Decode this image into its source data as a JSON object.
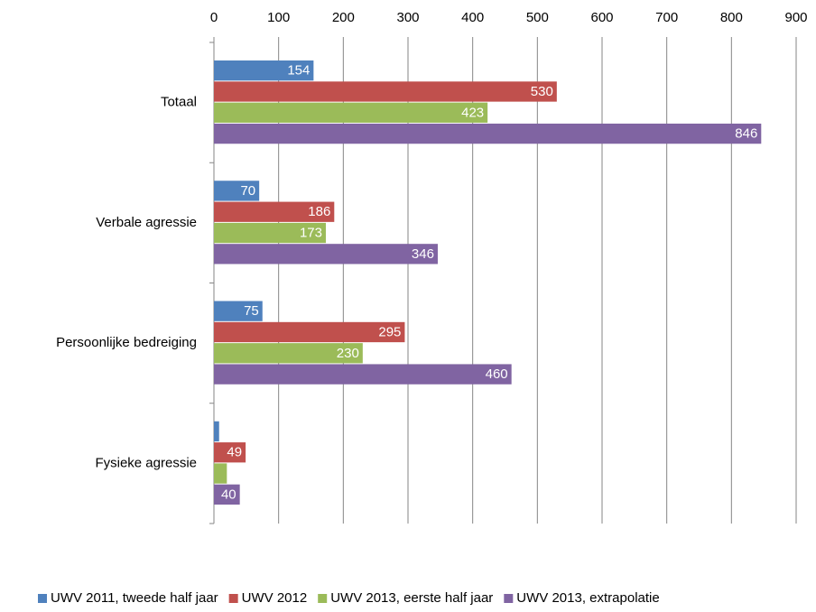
{
  "chart_data": {
    "type": "barh",
    "categories": [
      "Totaal",
      "Verbale agressie",
      "Persoonlijke bedreiging",
      "Fysieke agressie"
    ],
    "series": [
      {
        "name": "UWV 2011, tweede half jaar",
        "color": "#4f81bd",
        "values": [
          154,
          70,
          75,
          8
        ],
        "value_labels": [
          154,
          70,
          75,
          null
        ]
      },
      {
        "name": "UWV 2012",
        "color": "#c0504d",
        "values": [
          530,
          186,
          295,
          49
        ],
        "value_labels": [
          530,
          186,
          295,
          49
        ]
      },
      {
        "name": "UWV 2013, eerste half jaar",
        "color": "#9bbb59",
        "values": [
          423,
          173,
          230,
          20
        ],
        "value_labels": [
          423,
          173,
          230,
          null
        ]
      },
      {
        "name": "UWV 2013, extrapolatie",
        "color": "#8064a2",
        "values": [
          846,
          346,
          460,
          40
        ],
        "value_labels": [
          846,
          346,
          460,
          40
        ]
      }
    ],
    "xlim": [
      0,
      900
    ],
    "xticks": [
      0,
      100,
      200,
      300,
      400,
      500,
      600,
      700,
      800,
      900
    ],
    "grid": true,
    "legend": "bottom"
  }
}
